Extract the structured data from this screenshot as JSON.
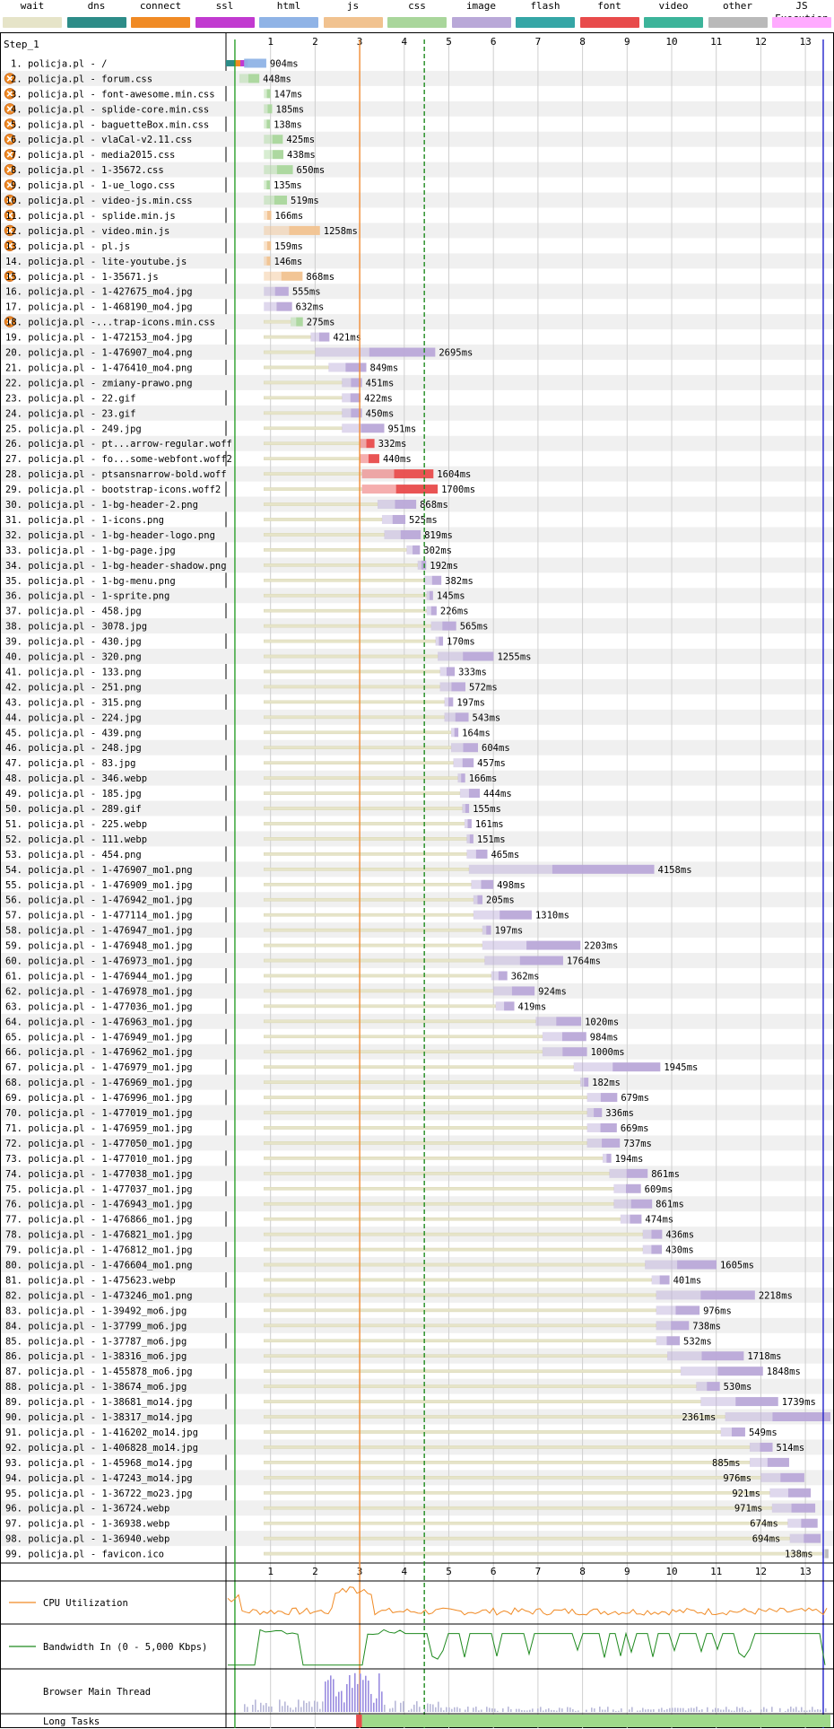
{
  "legend": [
    {
      "label": "wait",
      "color": "#e6e4c8"
    },
    {
      "label": "dns",
      "color": "#2d8c88"
    },
    {
      "label": "connect",
      "color": "#f08a24"
    },
    {
      "label": "ssl",
      "color": "#c13ad0"
    },
    {
      "label": "html",
      "color": "#8fb3e6"
    },
    {
      "label": "js",
      "color": "#f1c28f"
    },
    {
      "label": "css",
      "color": "#a9d69b"
    },
    {
      "label": "image",
      "color": "#b9a8d8"
    },
    {
      "label": "flash",
      "color": "#35a6a6"
    },
    {
      "label": "font",
      "color": "#e84b4b"
    },
    {
      "label": "video",
      "color": "#3cb49a"
    },
    {
      "label": "other",
      "color": "#b9b9b9"
    },
    {
      "label": "JS Execution",
      "color": "#ffaaff"
    }
  ],
  "step_label": "Step_1",
  "lanes": {
    "cpu": "CPU Utilization",
    "bandwidth": "Bandwidth In (0 - 5,000 Kbps)",
    "main_thread": "Browser Main Thread",
    "long_tasks": "Long Tasks"
  },
  "chart_data": {
    "type": "waterfall",
    "x_axis": {
      "unit": "s",
      "range": [
        0,
        13.5
      ],
      "ticks": [
        1,
        2,
        3,
        4,
        5,
        6,
        7,
        8,
        9,
        10,
        11,
        12,
        13
      ]
    },
    "markers": [
      {
        "at": 0.2,
        "color": "#2ca02c",
        "style": "solid"
      },
      {
        "at": 3.0,
        "color": "#f28c33",
        "style": "solid"
      },
      {
        "at": 4.45,
        "color": "#1f8a1f",
        "style": "dashed"
      },
      {
        "at": 13.4,
        "color": "#2222cc",
        "style": "solid"
      }
    ],
    "requests": [
      {
        "label": "1. policja.pl - /",
        "start": 0.0,
        "duration_ms": 904,
        "type": "html",
        "warn": false
      },
      {
        "label": "2. policja.pl - forum.css",
        "start": 0.3,
        "duration_ms": 448,
        "type": "css",
        "warn": true
      },
      {
        "label": "3. policja.pl - font-awesome.min.css",
        "start": 0.85,
        "duration_ms": 147,
        "type": "css",
        "warn": true
      },
      {
        "label": "4. policja.pl - splide-core.min.css",
        "start": 0.85,
        "duration_ms": 185,
        "type": "css",
        "warn": true
      },
      {
        "label": "5. policja.pl - baguetteBox.min.css",
        "start": 0.85,
        "duration_ms": 138,
        "type": "css",
        "warn": true
      },
      {
        "label": "6. policja.pl - vlaCal-v2.11.css",
        "start": 0.85,
        "duration_ms": 425,
        "type": "css",
        "warn": true
      },
      {
        "label": "7. policja.pl - media2015.css",
        "start": 0.85,
        "duration_ms": 438,
        "type": "css",
        "warn": true
      },
      {
        "label": "8. policja.pl - 1-35672.css",
        "start": 0.85,
        "duration_ms": 650,
        "type": "css",
        "warn": true
      },
      {
        "label": "9. policja.pl - 1-ue_logo.css",
        "start": 0.85,
        "duration_ms": 135,
        "type": "css",
        "warn": true
      },
      {
        "label": "10. policja.pl - video-js.min.css",
        "start": 0.85,
        "duration_ms": 519,
        "type": "css",
        "warn": true
      },
      {
        "label": "11. policja.pl - splide.min.js",
        "start": 0.85,
        "duration_ms": 166,
        "type": "js",
        "warn": true
      },
      {
        "label": "12. policja.pl - video.min.js",
        "start": 0.85,
        "duration_ms": 1258,
        "type": "js",
        "warn": true
      },
      {
        "label": "13. policja.pl - pl.js",
        "start": 0.85,
        "duration_ms": 159,
        "type": "js",
        "warn": true
      },
      {
        "label": "14. policja.pl - lite-youtube.js",
        "start": 0.85,
        "duration_ms": 146,
        "type": "js",
        "warn": false
      },
      {
        "label": "15. policja.pl - 1-35671.js",
        "start": 0.85,
        "duration_ms": 868,
        "type": "js",
        "warn": true
      },
      {
        "label": "16. policja.pl - 1-427675_mo4.jpg",
        "start": 0.85,
        "duration_ms": 555,
        "type": "image",
        "warn": false
      },
      {
        "label": "17. policja.pl - 1-468190_mo4.jpg",
        "start": 0.85,
        "duration_ms": 632,
        "type": "image",
        "warn": false
      },
      {
        "label": "18. policja.pl -...trap-icons.min.css",
        "start": 1.45,
        "duration_ms": 275,
        "type": "css",
        "warn": true
      },
      {
        "label": "19. policja.pl - 1-472153_mo4.jpg",
        "start": 1.9,
        "duration_ms": 421,
        "type": "image",
        "warn": false
      },
      {
        "label": "20. policja.pl - 1-476907_mo4.png",
        "start": 2.0,
        "duration_ms": 2695,
        "type": "image",
        "warn": false
      },
      {
        "label": "21. policja.pl - 1-476410_mo4.png",
        "start": 2.3,
        "duration_ms": 849,
        "type": "image",
        "warn": false
      },
      {
        "label": "22. policja.pl - zmiany-prawo.png",
        "start": 2.6,
        "duration_ms": 451,
        "type": "image",
        "warn": false
      },
      {
        "label": "23. policja.pl - 22.gif",
        "start": 2.6,
        "duration_ms": 422,
        "type": "image",
        "warn": false
      },
      {
        "label": "24. policja.pl - 23.gif",
        "start": 2.6,
        "duration_ms": 450,
        "type": "image",
        "warn": false
      },
      {
        "label": "25. policja.pl - 249.jpg",
        "start": 2.6,
        "duration_ms": 951,
        "type": "image",
        "warn": false
      },
      {
        "label": "26. policja.pl - pt...arrow-regular.woff",
        "start": 3.0,
        "duration_ms": 332,
        "type": "font",
        "warn": false
      },
      {
        "label": "27. policja.pl - fo...some-webfont.woff2",
        "start": 3.0,
        "duration_ms": 440,
        "type": "font",
        "warn": false
      },
      {
        "label": "28. policja.pl - ptsansnarrow-bold.woff",
        "start": 3.05,
        "duration_ms": 1604,
        "type": "font",
        "warn": false
      },
      {
        "label": "29. policja.pl - bootstrap-icons.woff2",
        "start": 3.05,
        "duration_ms": 1700,
        "type": "font",
        "warn": false
      },
      {
        "label": "30. policja.pl - 1-bg-header-2.png",
        "start": 3.4,
        "duration_ms": 868,
        "type": "image",
        "warn": false
      },
      {
        "label": "31. policja.pl - 1-icons.png",
        "start": 3.5,
        "duration_ms": 525,
        "type": "image",
        "warn": false
      },
      {
        "label": "32. policja.pl - 1-bg-header-logo.png",
        "start": 3.55,
        "duration_ms": 819,
        "type": "image",
        "warn": false
      },
      {
        "label": "33. policja.pl - 1-bg-page.jpg",
        "start": 4.05,
        "duration_ms": 302,
        "type": "image",
        "warn": false
      },
      {
        "label": "34. policja.pl - 1-bg-header-shadow.png",
        "start": 4.3,
        "duration_ms": 192,
        "type": "image",
        "warn": false
      },
      {
        "label": "35. policja.pl - 1-bg-menu.png",
        "start": 4.45,
        "duration_ms": 382,
        "type": "image",
        "warn": false
      },
      {
        "label": "36. policja.pl - 1-sprite.png",
        "start": 4.5,
        "duration_ms": 145,
        "type": "image",
        "warn": false
      },
      {
        "label": "37. policja.pl - 458.jpg",
        "start": 4.5,
        "duration_ms": 226,
        "type": "image",
        "warn": false
      },
      {
        "label": "38. policja.pl - 3078.jpg",
        "start": 4.6,
        "duration_ms": 565,
        "type": "image",
        "warn": false
      },
      {
        "label": "39. policja.pl - 430.jpg",
        "start": 4.7,
        "duration_ms": 170,
        "type": "image",
        "warn": false
      },
      {
        "label": "40. policja.pl - 320.png",
        "start": 4.75,
        "duration_ms": 1255,
        "type": "image",
        "warn": false
      },
      {
        "label": "41. policja.pl - 133.png",
        "start": 4.8,
        "duration_ms": 333,
        "type": "image",
        "warn": false
      },
      {
        "label": "42. policja.pl - 251.png",
        "start": 4.8,
        "duration_ms": 572,
        "type": "image",
        "warn": false
      },
      {
        "label": "43. policja.pl - 315.png",
        "start": 4.9,
        "duration_ms": 197,
        "type": "image",
        "warn": false
      },
      {
        "label": "44. policja.pl - 224.jpg",
        "start": 4.9,
        "duration_ms": 543,
        "type": "image",
        "warn": false
      },
      {
        "label": "45. policja.pl - 439.png",
        "start": 5.05,
        "duration_ms": 164,
        "type": "image",
        "warn": false
      },
      {
        "label": "46. policja.pl - 248.jpg",
        "start": 5.05,
        "duration_ms": 604,
        "type": "image",
        "warn": false
      },
      {
        "label": "47. policja.pl - 83.jpg",
        "start": 5.1,
        "duration_ms": 457,
        "type": "image",
        "warn": false
      },
      {
        "label": "48. policja.pl - 346.webp",
        "start": 5.2,
        "duration_ms": 166,
        "type": "image",
        "warn": false
      },
      {
        "label": "49. policja.pl - 185.jpg",
        "start": 5.25,
        "duration_ms": 444,
        "type": "image",
        "warn": false
      },
      {
        "label": "50. policja.pl - 289.gif",
        "start": 5.3,
        "duration_ms": 155,
        "type": "image",
        "warn": false
      },
      {
        "label": "51. policja.pl - 225.webp",
        "start": 5.35,
        "duration_ms": 161,
        "type": "image",
        "warn": false
      },
      {
        "label": "52. policja.pl - 111.webp",
        "start": 5.4,
        "duration_ms": 151,
        "type": "image",
        "warn": false
      },
      {
        "label": "53. policja.pl - 454.png",
        "start": 5.4,
        "duration_ms": 465,
        "type": "image",
        "warn": false
      },
      {
        "label": "54. policja.pl - 1-476907_mo1.png",
        "start": 5.45,
        "duration_ms": 4158,
        "type": "image",
        "warn": false
      },
      {
        "label": "55. policja.pl - 1-476909_mo1.jpg",
        "start": 5.5,
        "duration_ms": 498,
        "type": "image",
        "warn": false
      },
      {
        "label": "56. policja.pl - 1-476942_mo1.jpg",
        "start": 5.55,
        "duration_ms": 205,
        "type": "image",
        "warn": false
      },
      {
        "label": "57. policja.pl - 1-477114_mo1.jpg",
        "start": 5.55,
        "duration_ms": 1310,
        "type": "image",
        "warn": false
      },
      {
        "label": "58. policja.pl - 1-476947_mo1.jpg",
        "start": 5.75,
        "duration_ms": 197,
        "type": "image",
        "warn": false
      },
      {
        "label": "59. policja.pl - 1-476948_mo1.jpg",
        "start": 5.75,
        "duration_ms": 2203,
        "type": "image",
        "warn": false
      },
      {
        "label": "60. policja.pl - 1-476973_mo1.jpg",
        "start": 5.8,
        "duration_ms": 1764,
        "type": "image",
        "warn": false
      },
      {
        "label": "61. policja.pl - 1-476944_mo1.jpg",
        "start": 5.95,
        "duration_ms": 362,
        "type": "image",
        "warn": false
      },
      {
        "label": "62. policja.pl - 1-476978_mo1.jpg",
        "start": 6.0,
        "duration_ms": 924,
        "type": "image",
        "warn": false
      },
      {
        "label": "63. policja.pl - 1-477036_mo1.jpg",
        "start": 6.05,
        "duration_ms": 419,
        "type": "image",
        "warn": false
      },
      {
        "label": "64. policja.pl - 1-476963_mo1.jpg",
        "start": 6.95,
        "duration_ms": 1020,
        "type": "image",
        "warn": false
      },
      {
        "label": "65. policja.pl - 1-476949_mo1.jpg",
        "start": 7.1,
        "duration_ms": 984,
        "type": "image",
        "warn": false
      },
      {
        "label": "66. policja.pl - 1-476962_mo1.jpg",
        "start": 7.1,
        "duration_ms": 1000,
        "type": "image",
        "warn": false
      },
      {
        "label": "67. policja.pl - 1-476979_mo1.jpg",
        "start": 7.8,
        "duration_ms": 1945,
        "type": "image",
        "warn": false
      },
      {
        "label": "68. policja.pl - 1-476969_mo1.jpg",
        "start": 7.95,
        "duration_ms": 182,
        "type": "image",
        "warn": false
      },
      {
        "label": "69. policja.pl - 1-476996_mo1.jpg",
        "start": 8.1,
        "duration_ms": 679,
        "type": "image",
        "warn": false
      },
      {
        "label": "70. policja.pl - 1-477019_mo1.jpg",
        "start": 8.1,
        "duration_ms": 336,
        "type": "image",
        "warn": false
      },
      {
        "label": "71. policja.pl - 1-476959_mo1.jpg",
        "start": 8.1,
        "duration_ms": 669,
        "type": "image",
        "warn": false
      },
      {
        "label": "72. policja.pl - 1-477050_mo1.jpg",
        "start": 8.1,
        "duration_ms": 737,
        "type": "image",
        "warn": false
      },
      {
        "label": "73. policja.pl - 1-477010_mo1.jpg",
        "start": 8.45,
        "duration_ms": 194,
        "type": "image",
        "warn": false
      },
      {
        "label": "74. policja.pl - 1-477038_mo1.jpg",
        "start": 8.6,
        "duration_ms": 861,
        "type": "image",
        "warn": false
      },
      {
        "label": "75. policja.pl - 1-477037_mo1.jpg",
        "start": 8.7,
        "duration_ms": 609,
        "type": "image",
        "warn": false
      },
      {
        "label": "76. policja.pl - 1-476943_mo1.jpg",
        "start": 8.7,
        "duration_ms": 861,
        "type": "image",
        "warn": false
      },
      {
        "label": "77. policja.pl - 1-476866_mo1.jpg",
        "start": 8.85,
        "duration_ms": 474,
        "type": "image",
        "warn": false
      },
      {
        "label": "78. policja.pl - 1-476821_mo1.jpg",
        "start": 9.35,
        "duration_ms": 436,
        "type": "image",
        "warn": false
      },
      {
        "label": "79. policja.pl - 1-476812_mo1.jpg",
        "start": 9.35,
        "duration_ms": 430,
        "type": "image",
        "warn": false
      },
      {
        "label": "80. policja.pl - 1-476604_mo1.png",
        "start": 9.4,
        "duration_ms": 1605,
        "type": "image",
        "warn": false
      },
      {
        "label": "81. policja.pl - 1-475623.webp",
        "start": 9.55,
        "duration_ms": 401,
        "type": "image",
        "warn": false
      },
      {
        "label": "82. policja.pl - 1-473246_mo1.png",
        "start": 9.65,
        "duration_ms": 2218,
        "type": "image",
        "warn": false
      },
      {
        "label": "83. policja.pl - 1-39492_mo6.jpg",
        "start": 9.65,
        "duration_ms": 976,
        "type": "image",
        "warn": false
      },
      {
        "label": "84. policja.pl - 1-37799_mo6.jpg",
        "start": 9.65,
        "duration_ms": 738,
        "type": "image",
        "warn": false
      },
      {
        "label": "85. policja.pl - 1-37787_mo6.jpg",
        "start": 9.65,
        "duration_ms": 532,
        "type": "image",
        "warn": false
      },
      {
        "label": "86. policja.pl - 1-38316_mo6.jpg",
        "start": 9.9,
        "duration_ms": 1718,
        "type": "image",
        "warn": false
      },
      {
        "label": "87. policja.pl - 1-455878_mo6.jpg",
        "start": 10.2,
        "duration_ms": 1848,
        "type": "image",
        "warn": false
      },
      {
        "label": "88. policja.pl - 1-38674_mo6.jpg",
        "start": 10.55,
        "duration_ms": 530,
        "type": "image",
        "warn": false
      },
      {
        "label": "89. policja.pl - 1-38681_mo14.jpg",
        "start": 10.65,
        "duration_ms": 1739,
        "type": "image",
        "warn": false
      },
      {
        "label": "90. policja.pl - 1-38317_mo14.jpg",
        "start": 11.2,
        "duration_ms": 2361,
        "type": "image",
        "warn": false
      },
      {
        "label": "91. policja.pl - 1-416202_mo14.jpg",
        "start": 11.1,
        "duration_ms": 549,
        "type": "image",
        "warn": false
      },
      {
        "label": "92. policja.pl - 1-406828_mo14.jpg",
        "start": 11.75,
        "duration_ms": 514,
        "type": "image",
        "warn": false
      },
      {
        "label": "93. policja.pl - 1-45968_mo14.jpg",
        "start": 11.75,
        "duration_ms": 885,
        "type": "image",
        "warn": false
      },
      {
        "label": "94. policja.pl - 1-47243_mo14.jpg",
        "start": 12.0,
        "duration_ms": 976,
        "type": "image",
        "warn": false
      },
      {
        "label": "95. policja.pl - 1-36722_mo23.jpg",
        "start": 12.2,
        "duration_ms": 921,
        "type": "image",
        "warn": false
      },
      {
        "label": "96. policja.pl - 1-36724.webp",
        "start": 12.25,
        "duration_ms": 971,
        "type": "image",
        "warn": false
      },
      {
        "label": "97. policja.pl - 1-36938.webp",
        "start": 12.6,
        "duration_ms": 674,
        "type": "image",
        "warn": false
      },
      {
        "label": "98. policja.pl - 1-36940.webp",
        "start": 12.65,
        "duration_ms": 694,
        "type": "image",
        "warn": false
      },
      {
        "label": "99. policja.pl - favicon.ico",
        "start": 13.38,
        "duration_ms": 138,
        "type": "other",
        "warn": false
      }
    ]
  }
}
